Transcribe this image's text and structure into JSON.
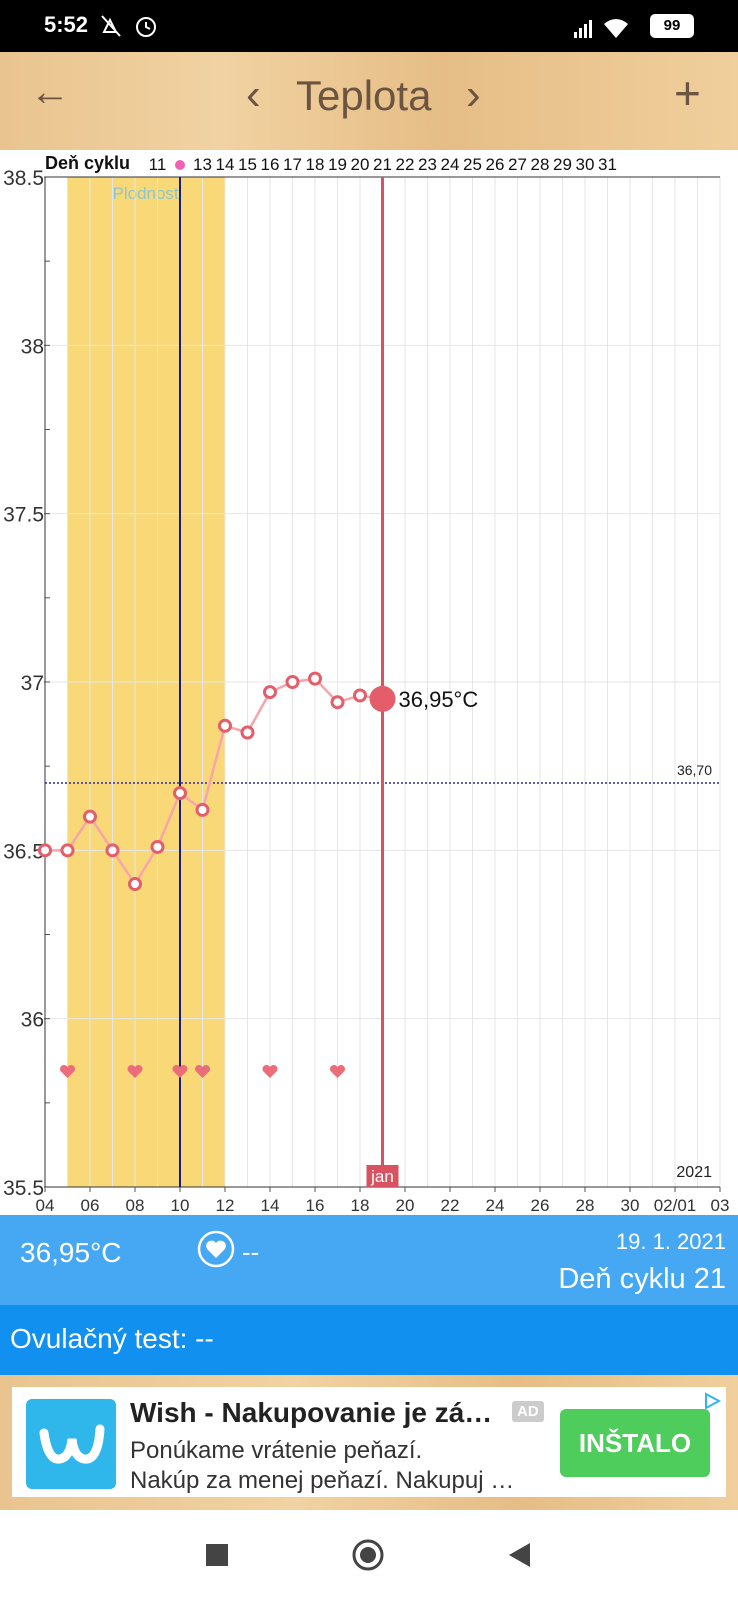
{
  "status_bar": {
    "time": "5:52",
    "battery": "99"
  },
  "header": {
    "back": "←",
    "prev": "‹",
    "title": "Teplota",
    "next": "›",
    "add": "+"
  },
  "chart_data": {
    "type": "line",
    "cycle_row_label": "Deň cyklu",
    "cycle_days": [
      null,
      null,
      null,
      null,
      null,
      11,
      null,
      13,
      14,
      15,
      16,
      17,
      18,
      19,
      20,
      21,
      22,
      23,
      24,
      25,
      26,
      27,
      28,
      29,
      30,
      31,
      null,
      null,
      null,
      null,
      null
    ],
    "categories": [
      "04",
      null,
      "06",
      null,
      "08",
      null,
      "10",
      null,
      "12",
      null,
      "14",
      null,
      "16",
      null,
      "18",
      null,
      "20",
      null,
      "22",
      null,
      "24",
      null,
      "26",
      null,
      "28",
      null,
      "30",
      null,
      "02/01",
      null,
      "03"
    ],
    "values": [
      36.5,
      36.5,
      36.6,
      36.5,
      36.4,
      36.51,
      36.67,
      36.62,
      36.87,
      36.85,
      36.97,
      37.0,
      37.01,
      36.94,
      36.96,
      36.95,
      null,
      null,
      null,
      null,
      null,
      null,
      null,
      null,
      null,
      null,
      null,
      null,
      null,
      null,
      null
    ],
    "value_labels": [
      null,
      null,
      null,
      null,
      null,
      null,
      null,
      null,
      null,
      null,
      null,
      null,
      null,
      null,
      null,
      "36,95°C",
      null,
      null,
      null,
      null,
      null,
      null,
      null,
      null,
      null,
      null,
      null,
      null,
      null,
      null,
      null
    ],
    "color": "#e35d6a",
    "ylim": [
      35.5,
      38.5
    ],
    "yticks": [
      35.5,
      36,
      36.5,
      37,
      37.5,
      38,
      38.5
    ],
    "grid": true,
    "cover_line": {
      "value": 36.7,
      "label": "36,70"
    },
    "fertile_label": "Plodnosť",
    "month_label": "jan",
    "year_label": "2021"
  },
  "info": {
    "temperature": "36,95°C",
    "intercourse": "--",
    "date": "19. 1. 2021",
    "cycle_day": "Deň cyklu 21",
    "ovulation_test": "Ovulačný test: --"
  },
  "ad": {
    "title": "Wish - Nakupovanie je zá…",
    "badge": "AD",
    "line1": "Ponúkame vrátenie peňazí.",
    "line2": "Nakúp za menej peňazí. Nakupuj …",
    "button": "INŠTALO"
  }
}
